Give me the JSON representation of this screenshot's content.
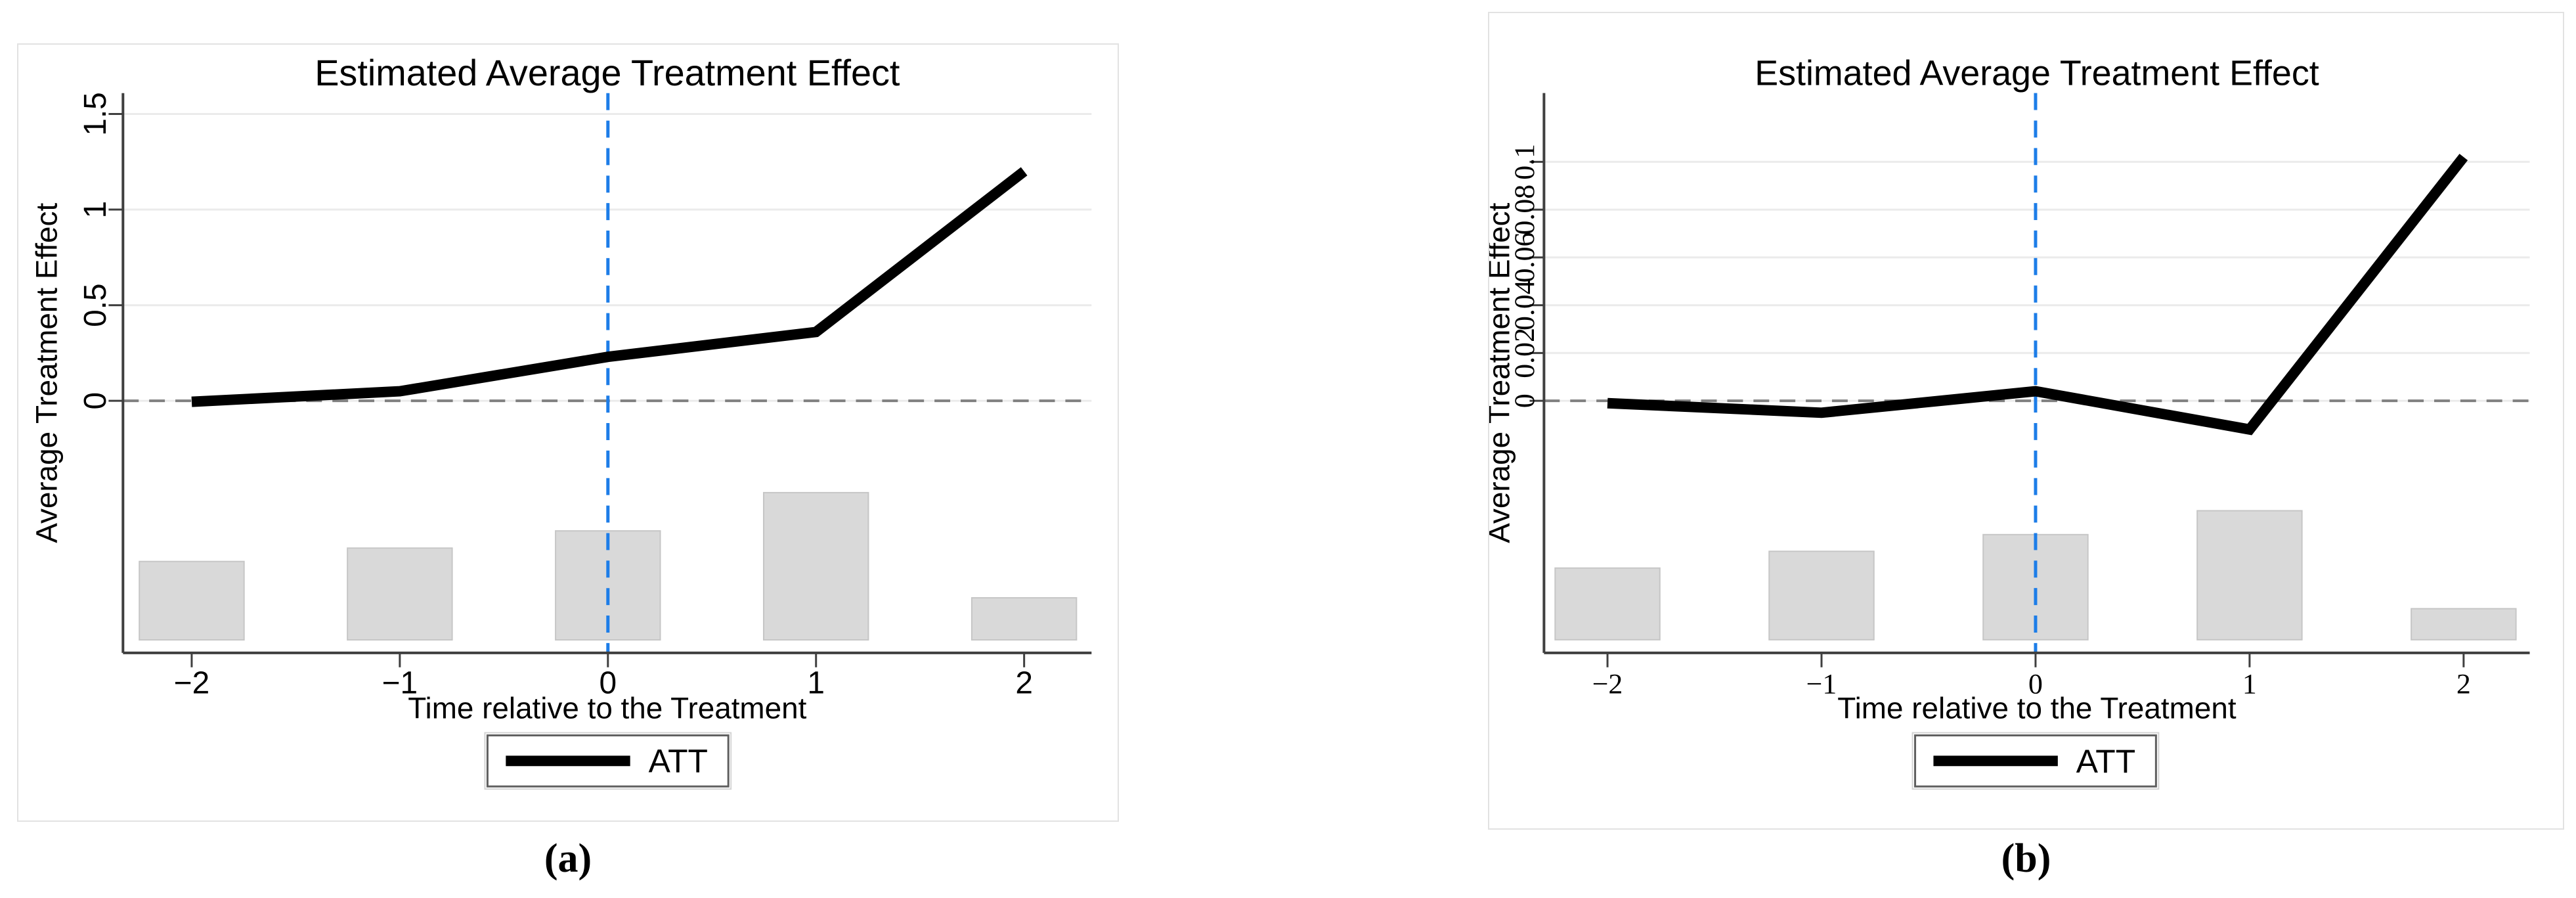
{
  "page": {
    "background": "#ffffff"
  },
  "colors": {
    "line": "#000000",
    "grid": "#ebebeb",
    "zero_line": "#808080",
    "axis": "#3f3f3f",
    "treatment_time_blue": "#1d7de8",
    "bar_fill": "#d9d9d9",
    "bar_border": "#c6c6c6",
    "panel_border": "#e2e2e2",
    "legend_border": "#5f5f5f",
    "legend_outer_border": "#d4d4d4",
    "text": "#000000"
  },
  "chart_data": [
    {
      "id": "a",
      "type": "line",
      "title": "Estimated Average Treatment Effect",
      "xlabel": "Time relative to the Treatment",
      "ylabel": "Average Treatment Effect",
      "legend": {
        "entries": [
          {
            "label": "ATT",
            "marker": "thick-black-line"
          }
        ],
        "position": "bottom-center"
      },
      "x": [
        -2,
        -1,
        0,
        1,
        2
      ],
      "x_tick_labels": [
        "−2",
        "−1",
        "0",
        "1",
        "2"
      ],
      "series": [
        {
          "name": "ATT",
          "values": [
            -0.005,
            0.05,
            0.23,
            0.36,
            1.2
          ]
        }
      ],
      "y_ticks": [
        0,
        0.5,
        1,
        1.5
      ],
      "y_tick_labels": [
        "0",
        "0.5",
        "1",
        "1.5"
      ],
      "ylim": [
        -1.318,
        1.609
      ],
      "xlim": [
        -2.33,
        2.33
      ],
      "grid": true,
      "reference_lines": {
        "horizontal_dashed_at_y": 0,
        "vertical_dashed_at_x": 0
      },
      "observation_bars": {
        "x": [
          -2,
          -1,
          0,
          1,
          2
        ],
        "heights": [
          0.41,
          0.48,
          0.57,
          0.77,
          0.22
        ],
        "baseline": -1.25
      },
      "tick_label_font": "sans",
      "caption": "(a)"
    },
    {
      "id": "b",
      "type": "line",
      "title": "Estimated Average Treatment Effect",
      "xlabel": "Time relative to the Treatment",
      "ylabel": "Average Treatment Effect",
      "legend": {
        "entries": [
          {
            "label": "ATT",
            "marker": "thick-black-line"
          }
        ],
        "position": "bottom-center"
      },
      "x": [
        -2,
        -1,
        0,
        1,
        2
      ],
      "x_tick_labels": [
        "−2",
        "−1",
        "0",
        "1",
        "2"
      ],
      "series": [
        {
          "name": "ATT",
          "values": [
            -0.001,
            -0.005,
            0.004,
            -0.012,
            0.102
          ]
        }
      ],
      "y_ticks": [
        0,
        0.02,
        0.04,
        0.06,
        0.08,
        0.1
      ],
      "y_tick_labels": [
        "0",
        "0.02",
        "0.04",
        "0.06",
        "0.08",
        "0.1"
      ],
      "ylim": [
        -0.1055,
        0.1288
      ],
      "xlim": [
        -2.33,
        2.33
      ],
      "grid": true,
      "reference_lines": {
        "horizontal_dashed_at_y": 0,
        "vertical_dashed_at_x": 0
      },
      "observation_bars": {
        "x": [
          -2,
          -1,
          0,
          1,
          2
        ],
        "heights": [
          0.03,
          0.037,
          0.044,
          0.054,
          0.013
        ],
        "baseline": -0.1
      },
      "tick_label_font": "serif",
      "caption": "(b)"
    }
  ]
}
